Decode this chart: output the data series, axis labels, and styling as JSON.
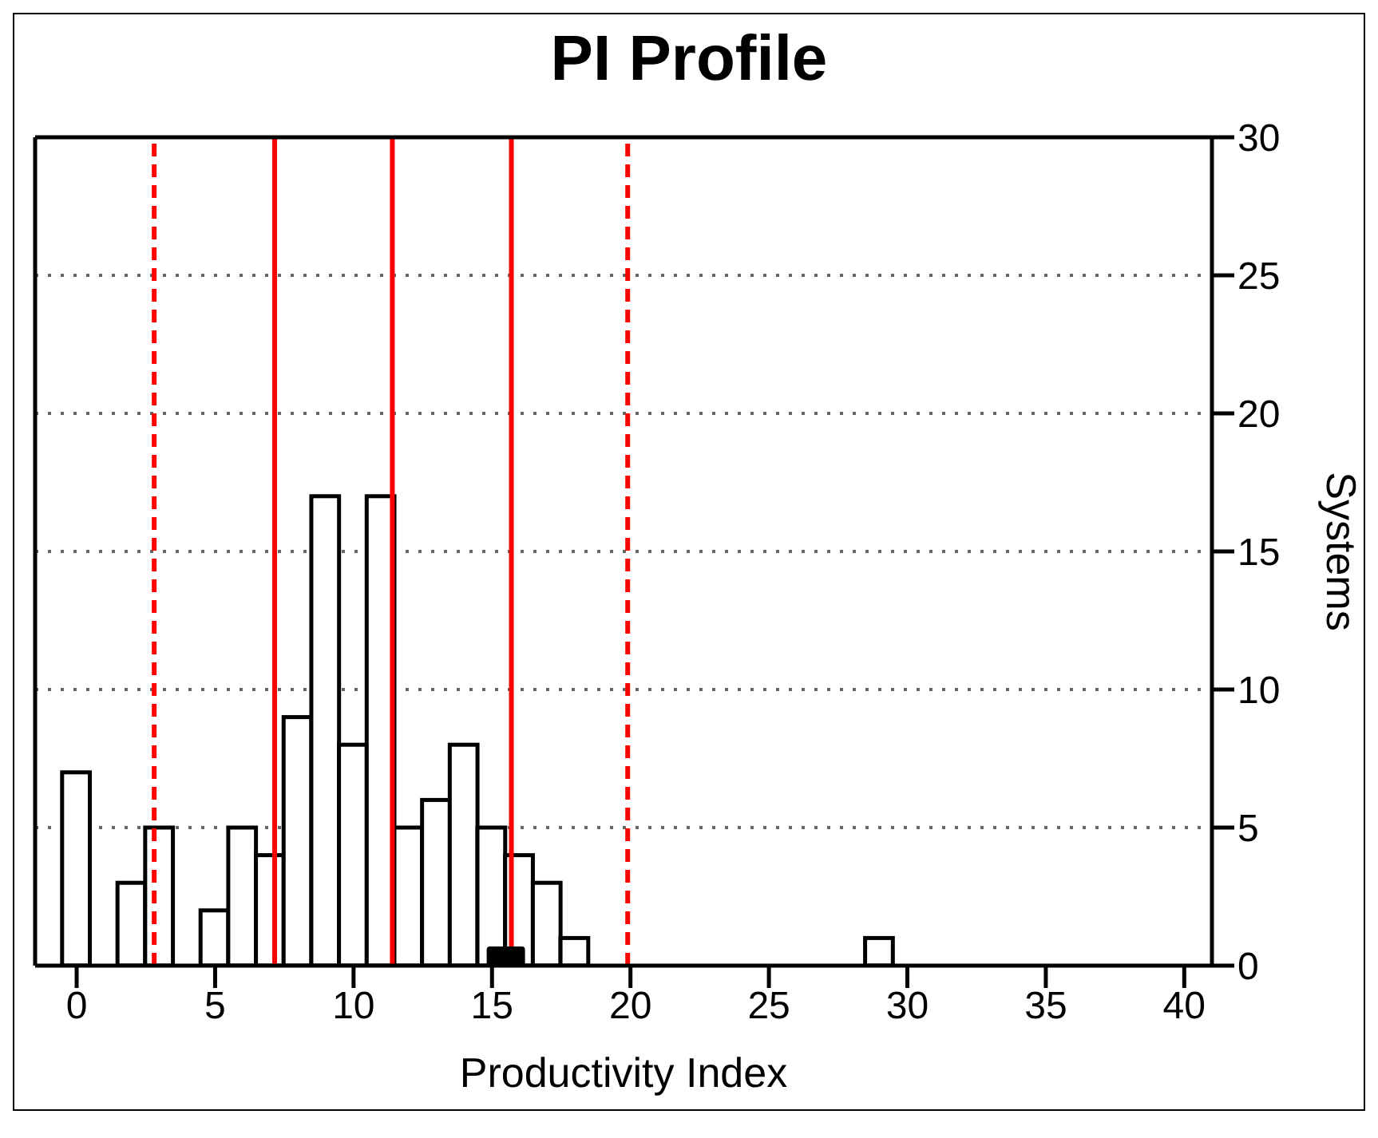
{
  "chart_data": {
    "type": "histogram",
    "title": "PI Profile",
    "xlabel": "Productivity Index",
    "ylabel": "Systems",
    "bins": [
      -0.5,
      0.5,
      1.5,
      2.5,
      3.5,
      4.5,
      5.5,
      6.5,
      7.5,
      8.5,
      9.5,
      10.5,
      11.5,
      12.5,
      13.5,
      14.5,
      15.5,
      16.5,
      17.5,
      18.5,
      19.5,
      20.5,
      21.5,
      22.5,
      23.5,
      24.5,
      25.5,
      26.5,
      27.5,
      28.5,
      29.5
    ],
    "values": [
      7,
      0,
      3,
      5,
      0,
      2,
      5,
      4,
      9,
      17,
      8,
      17,
      5,
      6,
      8,
      5,
      4,
      3,
      1,
      0,
      0,
      0,
      0,
      0,
      0,
      0,
      0,
      0,
      0,
      1
    ],
    "color": "#ffffff",
    "series": [
      {
        "type": "scatter",
        "x": [
          15.5
        ],
        "values": [
          0
        ],
        "color": "#000000",
        "marker": "square"
      }
    ],
    "xlim": [
      -1.5,
      41
    ],
    "xticks": [
      0,
      5,
      10,
      15,
      20,
      25,
      30,
      35,
      40
    ],
    "ylim": [
      0,
      30
    ],
    "yticks": [
      0,
      5,
      10,
      15,
      20,
      25,
      30
    ],
    "grid": "y",
    "legend": false,
    "ref_lines": [
      {
        "axis": "x",
        "value": 2.8,
        "color": "#ff0000",
        "line_style": "dashed"
      },
      {
        "axis": "x",
        "value": 7.15,
        "color": "#ff0000",
        "line_style": "solid"
      },
      {
        "axis": "x",
        "value": 11.4,
        "color": "#ff0000",
        "line_style": "solid"
      },
      {
        "axis": "x",
        "value": 15.7,
        "color": "#ff0000",
        "line_style": "solid"
      },
      {
        "axis": "x",
        "value": 19.9,
        "color": "#ff0000",
        "line_style": "dashed"
      }
    ]
  }
}
